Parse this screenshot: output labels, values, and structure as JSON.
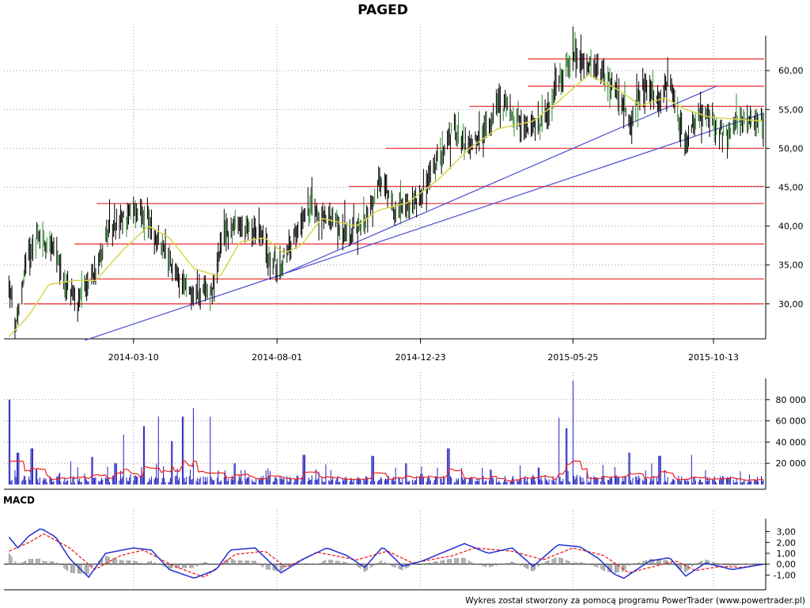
{
  "title": "PAGED",
  "footer": "Wykres został stworzony za pomocą programu PowerTrader (www.powertrader.pl)",
  "colors": {
    "price_bar": "#000000",
    "price_bar_accent": "#2e8b2e",
    "moving_average": "#d9d64a",
    "support_lines": "#ee3a3a",
    "trend_lines": "#4b4bd6",
    "volume_bars": "#1f1fbf",
    "volume_average": "#ee2020",
    "macd_line": "#1f2fd0",
    "signal_line": "#ee2020",
    "histogram": "#9a9a9a",
    "grid": "#9a9a9a"
  },
  "chart_data": [
    {
      "type": "ohlc",
      "name": "price",
      "x_tick_labels": [
        "2014-03-10",
        "2014-08-01",
        "2014-12-23",
        "2015-05-25",
        "2015-10-13"
      ],
      "y_tick_labels": [
        "30,00",
        "35,00",
        "40,00",
        "45,00",
        "50,00",
        "55,00",
        "60,00"
      ],
      "ylim": [
        25.5,
        64.5
      ],
      "grid": true,
      "anchors": [
        [
          "2013-11-05",
          32.5
        ],
        [
          "2013-11-12",
          26.8
        ],
        [
          "2013-11-22",
          35.5
        ],
        [
          "2013-12-03",
          38.6
        ],
        [
          "2013-12-18",
          37.5
        ],
        [
          "2014-01-03",
          32.0
        ],
        [
          "2014-01-14",
          29.8
        ],
        [
          "2014-01-29",
          34.0
        ],
        [
          "2014-02-10",
          38.5
        ],
        [
          "2014-02-28",
          41.0
        ],
        [
          "2014-03-18",
          42.5
        ],
        [
          "2014-04-01",
          38.5
        ],
        [
          "2014-04-20",
          34.0
        ],
        [
          "2014-05-10",
          31.0
        ],
        [
          "2014-05-28",
          31.5
        ],
        [
          "2014-06-10",
          39.5
        ],
        [
          "2014-06-28",
          39.8
        ],
        [
          "2014-07-15",
          39.0
        ],
        [
          "2014-07-24",
          35.5
        ],
        [
          "2014-08-05",
          35.0
        ],
        [
          "2014-08-18",
          38.5
        ],
        [
          "2014-09-01",
          42.5
        ],
        [
          "2014-09-20",
          41.0
        ],
        [
          "2014-10-10",
          39.0
        ],
        [
          "2014-10-28",
          40.5
        ],
        [
          "2014-11-12",
          45.8
        ],
        [
          "2014-11-25",
          42.5
        ],
        [
          "2014-12-08",
          42.0
        ],
        [
          "2014-12-25",
          44.5
        ],
        [
          "2015-01-10",
          48.5
        ],
        [
          "2015-01-26",
          52.5
        ],
        [
          "2015-02-10",
          50.0
        ],
        [
          "2015-02-26",
          52.5
        ],
        [
          "2015-03-12",
          56.0
        ],
        [
          "2015-03-28",
          54.0
        ],
        [
          "2015-04-10",
          52.5
        ],
        [
          "2015-04-25",
          53.5
        ],
        [
          "2015-05-10",
          58.5
        ],
        [
          "2015-05-24",
          62.0
        ],
        [
          "2015-06-10",
          60.5
        ],
        [
          "2015-06-28",
          59.0
        ],
        [
          "2015-07-08",
          57.0
        ],
        [
          "2015-07-22",
          53.0
        ],
        [
          "2015-08-05",
          58.5
        ],
        [
          "2015-08-20",
          55.5
        ],
        [
          "2015-08-30",
          59.5
        ],
        [
          "2015-09-06",
          55.0
        ],
        [
          "2015-09-14",
          50.5
        ],
        [
          "2015-09-24",
          53.5
        ],
        [
          "2015-10-05",
          54.5
        ],
        [
          "2015-10-18",
          52.5
        ],
        [
          "2015-10-28",
          51.5
        ],
        [
          "2015-11-08",
          54.0
        ],
        [
          "2015-11-20",
          53.5
        ],
        [
          "2015-12-02",
          53.5
        ]
      ],
      "moving_average": [
        [
          "2013-11-05",
          25.8
        ],
        [
          "2013-11-25",
          28.5
        ],
        [
          "2013-12-15",
          32.5
        ],
        [
          "2014-01-10",
          33.0
        ],
        [
          "2014-01-31",
          33.0
        ],
        [
          "2014-02-28",
          37.0
        ],
        [
          "2014-03-25",
          40.0
        ],
        [
          "2014-04-15",
          38.5
        ],
        [
          "2014-05-10",
          34.5
        ],
        [
          "2014-06-05",
          33.5
        ],
        [
          "2014-06-25",
          38.0
        ],
        [
          "2014-07-20",
          38.5
        ],
        [
          "2014-08-08",
          36.5
        ],
        [
          "2014-08-25",
          37.5
        ],
        [
          "2014-09-15",
          41.0
        ],
        [
          "2014-10-20",
          40.0
        ],
        [
          "2014-11-10",
          42.0
        ],
        [
          "2014-12-10",
          43.0
        ],
        [
          "2015-01-10",
          46.0
        ],
        [
          "2015-02-10",
          50.0
        ],
        [
          "2015-03-10",
          52.5
        ],
        [
          "2015-04-15",
          53.5
        ],
        [
          "2015-05-10",
          56.0
        ],
        [
          "2015-06-10",
          59.5
        ],
        [
          "2015-07-10",
          57.5
        ],
        [
          "2015-08-01",
          55.5
        ],
        [
          "2015-08-25",
          56.5
        ],
        [
          "2015-09-15",
          55.0
        ],
        [
          "2015-10-10",
          54.0
        ],
        [
          "2015-12-02",
          53.5
        ]
      ],
      "horizontal_levels": [
        {
          "y": 30.0,
          "x_start": "2013-11-20"
        },
        {
          "y": 33.2,
          "x_start": "2014-01-25"
        },
        {
          "y": 37.7,
          "x_start": "2014-01-10"
        },
        {
          "y": 42.9,
          "x_start": "2014-02-01"
        },
        {
          "y": 45.1,
          "x_start": "2014-10-12"
        },
        {
          "y": 50.0,
          "x_start": "2014-11-18"
        },
        {
          "y": 55.4,
          "x_start": "2015-02-10"
        },
        {
          "y": 58.0,
          "x_start": "2015-04-10"
        },
        {
          "y": 61.5,
          "x_start": "2015-04-10"
        }
      ],
      "trend_lines": [
        {
          "from": [
            "2014-01-20",
            25.3
          ],
          "to": [
            "2015-12-02",
            54.5
          ]
        },
        {
          "from": [
            "2014-08-01",
            33.5
          ],
          "to": [
            "2015-10-16",
            58.0
          ]
        }
      ]
    },
    {
      "type": "bar",
      "name": "volume",
      "y_tick_labels": [
        "20 000",
        "40 000",
        "60 000",
        "80 000"
      ],
      "ylim": [
        0,
        100000
      ],
      "spikes": [
        [
          "2013-11-05",
          80000
        ],
        [
          "2013-11-14",
          30000
        ],
        [
          "2013-11-28",
          34000
        ],
        [
          "2014-01-05",
          22000
        ],
        [
          "2014-01-27",
          26000
        ],
        [
          "2014-02-20",
          20000
        ],
        [
          "2014-03-01",
          47000
        ],
        [
          "2014-03-21",
          55000
        ],
        [
          "2014-04-05",
          64000
        ],
        [
          "2014-04-18",
          41000
        ],
        [
          "2014-04-28",
          64000
        ],
        [
          "2014-05-10",
          72000
        ],
        [
          "2014-05-25",
          64000
        ],
        [
          "2014-06-20",
          20000
        ],
        [
          "2014-08-28",
          28000
        ],
        [
          "2014-09-20",
          19000
        ],
        [
          "2014-11-05",
          27000
        ],
        [
          "2014-12-08",
          20000
        ],
        [
          "2015-01-20",
          34000
        ],
        [
          "2015-04-20",
          16000
        ],
        [
          "2015-05-10",
          63000
        ],
        [
          "2015-05-18",
          53000
        ],
        [
          "2015-05-24",
          98000
        ],
        [
          "2015-07-20",
          30000
        ],
        [
          "2015-08-20",
          27000
        ],
        [
          "2015-09-20",
          28000
        ]
      ]
    },
    {
      "type": "line",
      "name": "MACD",
      "y_tick_labels": [
        "-1,00",
        "0,00",
        "1,00",
        "2,00",
        "3,00"
      ],
      "ylim": [
        -2.0,
        3.7
      ],
      "macd": [
        [
          "2013-11-05",
          2.5
        ],
        [
          "2013-11-14",
          1.5
        ],
        [
          "2013-11-25",
          2.6
        ],
        [
          "2013-12-07",
          3.3
        ],
        [
          "2013-12-22",
          2.5
        ],
        [
          "2014-01-05",
          0.5
        ],
        [
          "2014-01-24",
          -1.2
        ],
        [
          "2014-02-10",
          1.0
        ],
        [
          "2014-03-10",
          1.5
        ],
        [
          "2014-03-28",
          1.3
        ],
        [
          "2014-04-15",
          -0.5
        ],
        [
          "2014-05-10",
          -1.3
        ],
        [
          "2014-06-01",
          -0.5
        ],
        [
          "2014-06-15",
          1.3
        ],
        [
          "2014-07-10",
          1.5
        ],
        [
          "2014-08-05",
          -0.8
        ],
        [
          "2014-08-28",
          0.5
        ],
        [
          "2014-09-20",
          1.5
        ],
        [
          "2014-10-10",
          0.8
        ],
        [
          "2014-10-28",
          -0.3
        ],
        [
          "2014-11-15",
          1.6
        ],
        [
          "2014-12-05",
          -0.2
        ],
        [
          "2014-12-25",
          0.3
        ],
        [
          "2015-01-15",
          1.1
        ],
        [
          "2015-02-05",
          1.9
        ],
        [
          "2015-03-01",
          1.0
        ],
        [
          "2015-03-25",
          1.5
        ],
        [
          "2015-04-15",
          -0.2
        ],
        [
          "2015-05-10",
          1.8
        ],
        [
          "2015-06-01",
          1.6
        ],
        [
          "2015-06-20",
          0.5
        ],
        [
          "2015-07-05",
          -0.9
        ],
        [
          "2015-07-15",
          -1.3
        ],
        [
          "2015-08-10",
          0.3
        ],
        [
          "2015-08-30",
          0.6
        ],
        [
          "2015-09-15",
          -1.1
        ],
        [
          "2015-10-05",
          0.1
        ],
        [
          "2015-11-01",
          -0.5
        ],
        [
          "2015-12-02",
          0.0
        ]
      ],
      "signal": [
        [
          "2013-11-05",
          1.2
        ],
        [
          "2013-11-25",
          2.0
        ],
        [
          "2013-12-10",
          2.8
        ],
        [
          "2014-01-05",
          1.5
        ],
        [
          "2014-01-30",
          -0.5
        ],
        [
          "2014-02-25",
          0.8
        ],
        [
          "2014-03-20",
          1.3
        ],
        [
          "2014-04-20",
          -0.2
        ],
        [
          "2014-05-20",
          -1.2
        ],
        [
          "2014-06-20",
          0.9
        ],
        [
          "2014-07-20",
          1.2
        ],
        [
          "2014-08-10",
          -0.3
        ],
        [
          "2014-09-10",
          1.1
        ],
        [
          "2014-10-20",
          0.4
        ],
        [
          "2014-11-20",
          1.2
        ],
        [
          "2014-12-15",
          0.1
        ],
        [
          "2015-01-25",
          0.8
        ],
        [
          "2015-02-15",
          1.5
        ],
        [
          "2015-03-25",
          1.2
        ],
        [
          "2015-04-25",
          0.4
        ],
        [
          "2015-05-25",
          1.5
        ],
        [
          "2015-06-25",
          0.8
        ],
        [
          "2015-07-20",
          -0.8
        ],
        [
          "2015-08-15",
          -0.2
        ],
        [
          "2015-09-05",
          0.3
        ],
        [
          "2015-09-25",
          -0.6
        ],
        [
          "2015-10-20",
          -0.2
        ],
        [
          "2015-11-10",
          -0.3
        ],
        [
          "2015-12-02",
          0.0
        ]
      ]
    }
  ]
}
